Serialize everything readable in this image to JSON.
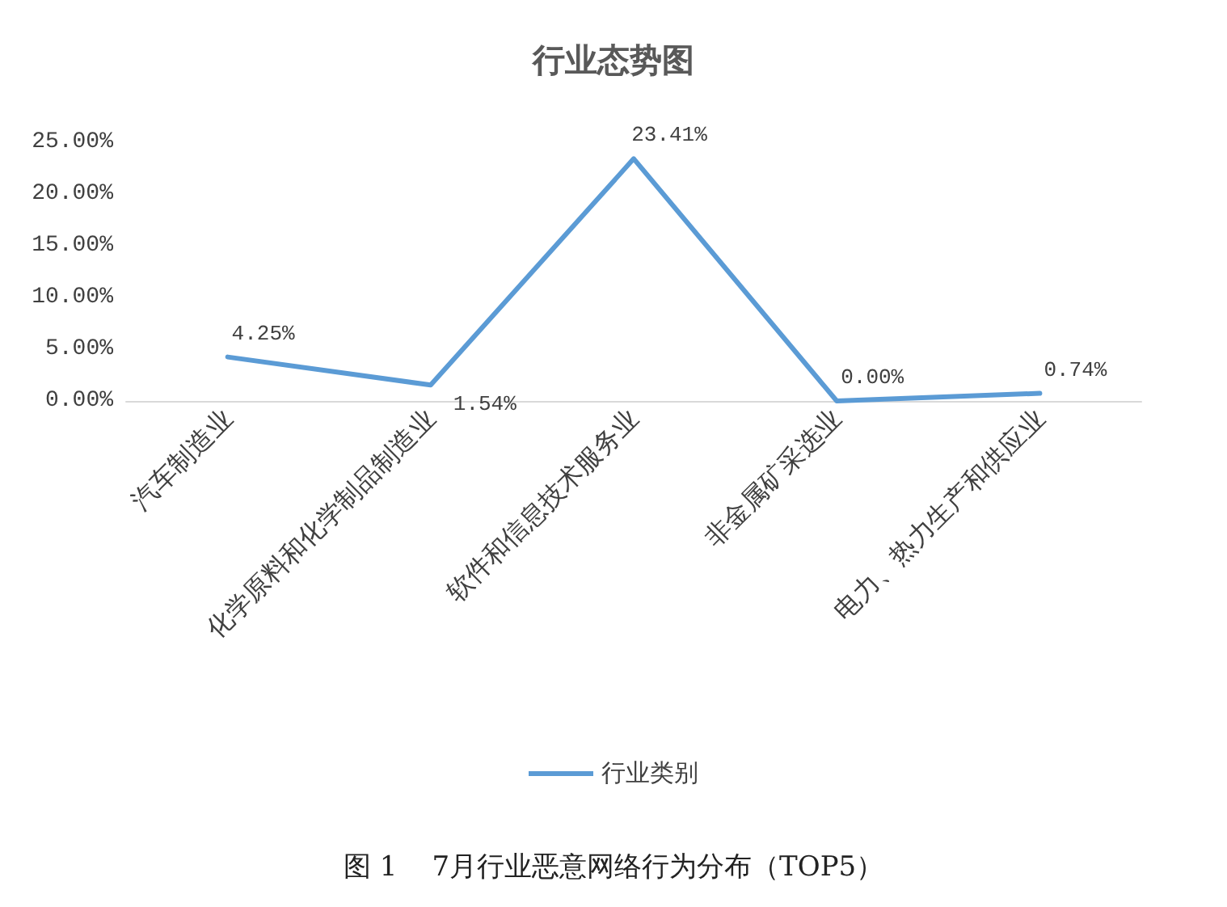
{
  "chart_data": {
    "type": "line",
    "title": "行业态势图",
    "categories": [
      "汽车制造业",
      "化学原料和化学制品制造业",
      "软件和信息技术服务业",
      "非金属矿采选业",
      "电力、热力生产和供应业"
    ],
    "series": [
      {
        "name": "行业类别",
        "color": "#5b9bd5",
        "values": [
          4.25,
          1.54,
          23.41,
          0.0,
          0.74
        ],
        "value_labels": [
          "4.25%",
          "1.54%",
          "23.41%",
          "0.00%",
          "0.74%"
        ]
      }
    ],
    "ylim": [
      0,
      25
    ],
    "yticks": [
      {
        "value": 0,
        "label": "0.00%"
      },
      {
        "value": 5,
        "label": "5.00%"
      },
      {
        "value": 10,
        "label": "10.00%"
      },
      {
        "value": 15,
        "label": "15.00%"
      },
      {
        "value": 20,
        "label": "20.00%"
      },
      {
        "value": 25,
        "label": "25.00%"
      }
    ],
    "grid": false,
    "legend": "bottom",
    "marker": "none",
    "line_style": "solid",
    "annotations": [
      "图 1    7月行业恶意网络行为分布（TOP5）"
    ]
  }
}
